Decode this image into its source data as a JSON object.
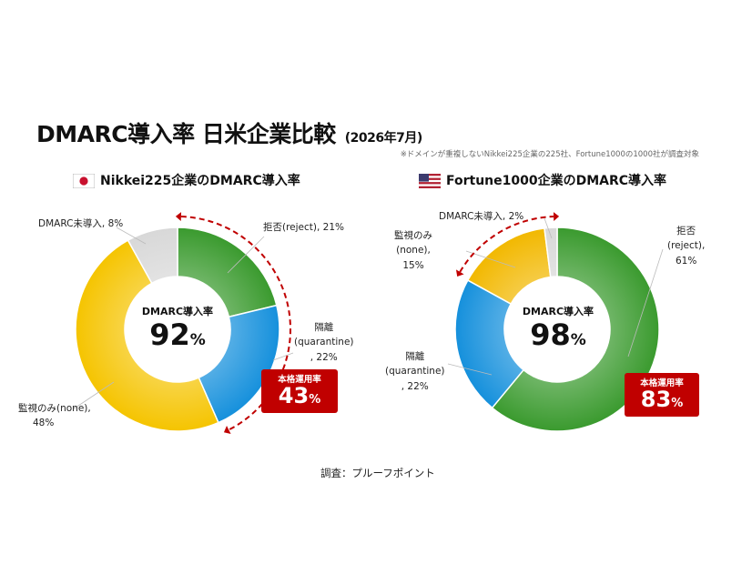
{
  "title": "DMARC導入率 日米企業比較",
  "subtitle": "(2026年7月)",
  "note": "※ドメインが重複しないNikkei225企業の225社、Fortune1000の1000社が調査対象",
  "source": "調査：プルーフポイント",
  "colors": {
    "reject": "#3a9a2e",
    "quarantine": "#1590dc",
    "none": "#f2b800",
    "none_jp": "#f5c400",
    "unadopted": "#d8d8d8",
    "arc": "#c00000"
  },
  "chart_data": [
    {
      "type": "pie",
      "title": "Nikkei225企業のDMARC導入率",
      "center_label": "DMARC導入率",
      "center_value": "92",
      "center_unit": "%",
      "badge_label": "本格運用率",
      "badge_value": "43",
      "badge_unit": "%",
      "slices": [
        {
          "name": "拒否(reject)",
          "value": 21,
          "label_lines": [
            "拒否(reject), 21%"
          ]
        },
        {
          "name": "隔離(quarantine)",
          "value": 22,
          "label_lines": [
            "隔離",
            "(quarantine)",
            ", 22%"
          ]
        },
        {
          "name": "監視のみ(none)",
          "value": 48,
          "label_lines": [
            "監視のみ(none),",
            "48%"
          ]
        },
        {
          "name": "DMARC未導入",
          "value": 8,
          "label_lines": [
            "DMARC未導入, 8%"
          ]
        }
      ]
    },
    {
      "type": "pie",
      "title": "Fortune1000企業のDMARC導入率",
      "center_label": "DMARC導入率",
      "center_value": "98",
      "center_unit": "%",
      "badge_label": "本格運用率",
      "badge_value": "83",
      "badge_unit": "%",
      "slices": [
        {
          "name": "拒否(reject)",
          "value": 61,
          "label_lines": [
            "拒否",
            "(reject),",
            "61%"
          ]
        },
        {
          "name": "隔離(quarantine)",
          "value": 22,
          "label_lines": [
            "隔離",
            "(quarantine)",
            ", 22%"
          ]
        },
        {
          "name": "監視のみ(none)",
          "value": 15,
          "label_lines": [
            "監視のみ",
            "(none),",
            "15%"
          ]
        },
        {
          "name": "DMARC未導入",
          "value": 2,
          "label_lines": [
            "DMARC未導入, 2%"
          ]
        }
      ]
    }
  ]
}
